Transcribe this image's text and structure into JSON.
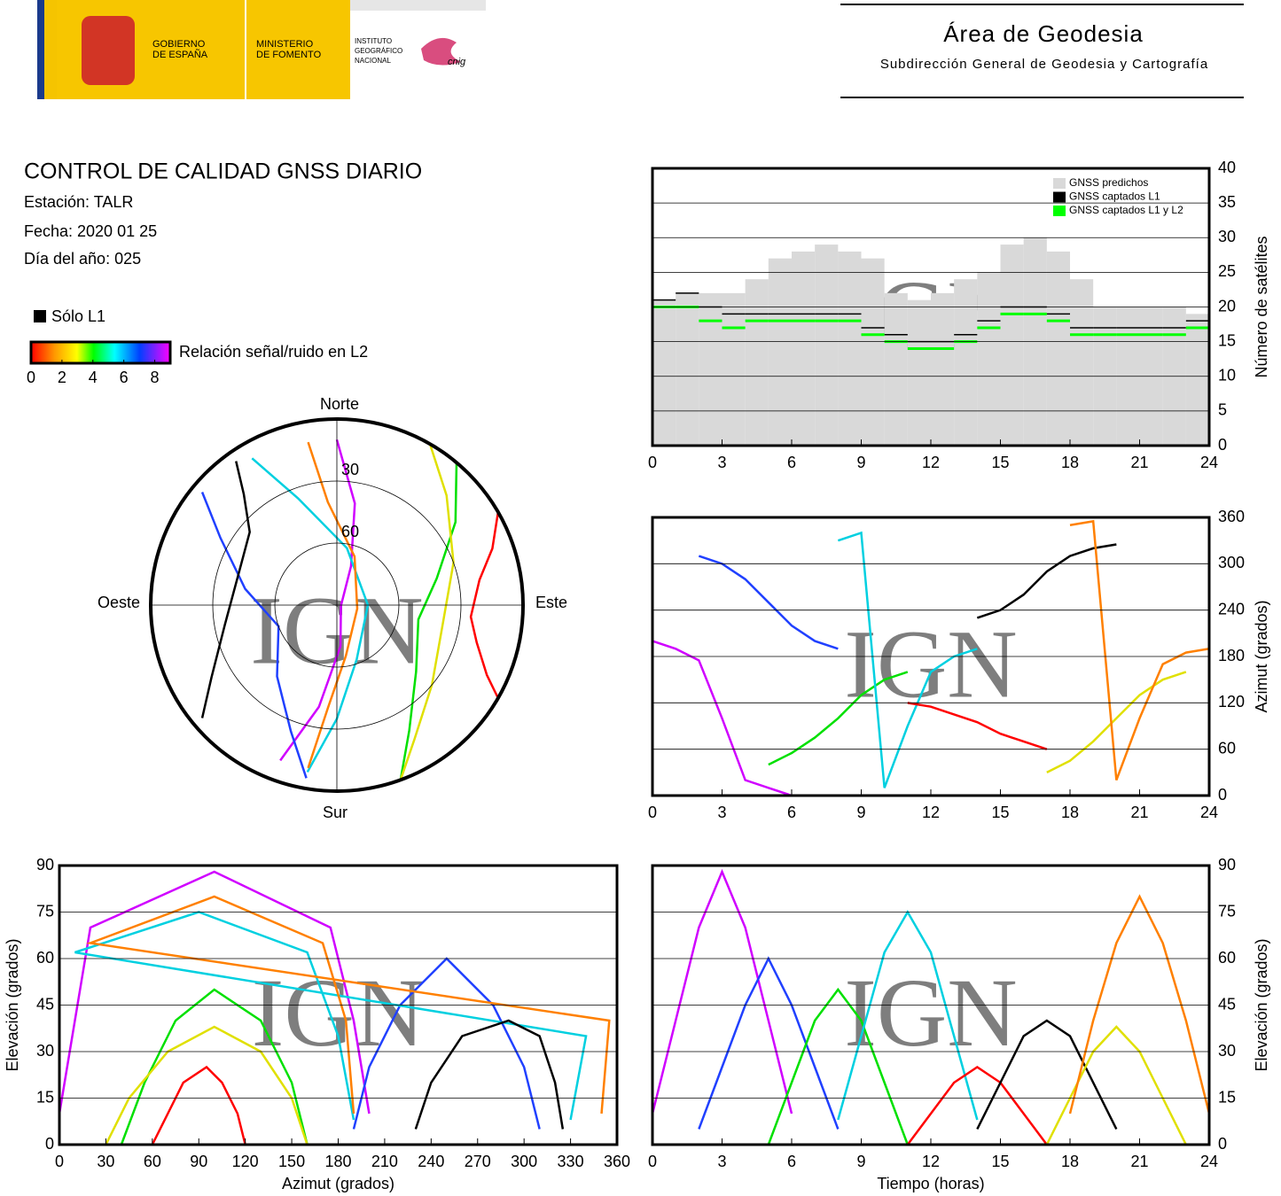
{
  "header": {
    "gobierno": [
      "GOBIERNO",
      "DE ESPAÑA"
    ],
    "ministerio": [
      "MINISTERIO",
      "DE FOMENTO"
    ],
    "instituto": [
      "INSTITUTO",
      "GEOGRÁFICO",
      "NACIONAL"
    ],
    "cnig": "cnig",
    "title": "Área de Geodesia",
    "subtitle": "Subdirección General de Geodesia y Cartografía"
  },
  "info": {
    "title": "CONTROL DE CALIDAD GNSS DIARIO",
    "lines": [
      "Estación: TALR",
      "Fecha: 2020 01 25",
      "Día del año: 025"
    ],
    "l1_only": "Sólo L1",
    "colorbar": {
      "label": "Relación señal/ruido en L2",
      "lim": [
        0,
        9
      ],
      "ticks": [
        0,
        2,
        4,
        6,
        8
      ]
    }
  },
  "watermark": "IGN",
  "tracks": [
    {
      "color": "#d000ff",
      "t": [
        0,
        1,
        2,
        3,
        4,
        5,
        6
      ],
      "elevation": [
        10,
        40,
        70,
        88,
        70,
        40,
        10
      ],
      "azimuth": [
        200,
        190,
        175,
        100,
        20,
        10,
        0
      ]
    },
    {
      "color": "#2040ff",
      "t": [
        2,
        3,
        4,
        5,
        6,
        7,
        8
      ],
      "elevation": [
        5,
        25,
        45,
        60,
        45,
        25,
        5
      ],
      "azimuth": [
        310,
        300,
        280,
        250,
        220,
        200,
        190
      ]
    },
    {
      "color": "#00e000",
      "t": [
        5,
        6,
        7,
        8,
        9,
        10,
        11
      ],
      "elevation": [
        0,
        20,
        40,
        50,
        40,
        20,
        0
      ],
      "azimuth": [
        40,
        55,
        75,
        100,
        130,
        150,
        160
      ]
    },
    {
      "color": "#00d0e0",
      "t": [
        8,
        9,
        10,
        11,
        12,
        13,
        14
      ],
      "elevation": [
        8,
        35,
        62,
        75,
        62,
        35,
        8
      ],
      "azimuth": [
        330,
        340,
        10,
        90,
        160,
        180,
        190
      ]
    },
    {
      "color": "#ff0000",
      "t": [
        11,
        12,
        13,
        14,
        15,
        16,
        17
      ],
      "elevation": [
        0,
        10,
        20,
        25,
        20,
        10,
        0
      ],
      "azimuth": [
        120,
        115,
        105,
        95,
        80,
        70,
        60
      ]
    },
    {
      "color": "#000000",
      "t": [
        14,
        15,
        16,
        17,
        18,
        19,
        20
      ],
      "elevation": [
        5,
        20,
        35,
        40,
        35,
        20,
        5
      ],
      "azimuth": [
        230,
        240,
        260,
        290,
        310,
        320,
        325
      ]
    },
    {
      "color": "#e0e000",
      "t": [
        17,
        18,
        19,
        20,
        21,
        22,
        23
      ],
      "elevation": [
        0,
        15,
        30,
        38,
        30,
        15,
        0
      ],
      "azimuth": [
        30,
        45,
        70,
        100,
        130,
        150,
        160
      ]
    },
    {
      "color": "#ff8000",
      "t": [
        18,
        19,
        20,
        21,
        22,
        23,
        24
      ],
      "elevation": [
        10,
        40,
        65,
        80,
        65,
        40,
        10
      ],
      "azimuth": [
        350,
        355,
        20,
        100,
        170,
        185,
        190
      ]
    }
  ],
  "chart_data": [
    {
      "type": "step",
      "ylabel": "Número de satélites",
      "xlim": [
        0,
        24
      ],
      "xticks": [
        0,
        3,
        6,
        9,
        12,
        15,
        18,
        21,
        24
      ],
      "ylim": [
        0,
        40
      ],
      "yticks": [
        0,
        5,
        10,
        15,
        20,
        25,
        30,
        35,
        40
      ],
      "grid": true,
      "yaxis_side": "right",
      "legend": "upper right",
      "x": [
        0,
        1,
        2,
        3,
        4,
        5,
        6,
        7,
        8,
        9,
        10,
        11,
        12,
        13,
        14,
        15,
        16,
        17,
        18,
        19,
        20,
        21,
        22,
        23
      ],
      "series": [
        {
          "name": "GNSS predichos",
          "color": "#d9d9d9",
          "values": [
            21,
            22,
            22,
            22,
            24,
            27,
            28,
            29,
            28,
            27,
            22,
            21,
            22,
            24,
            25,
            29,
            30,
            28,
            24,
            20,
            20,
            20,
            20,
            19
          ]
        },
        {
          "name": "GNSS captados L1",
          "color": "#000000",
          "values": [
            21,
            22,
            20,
            19,
            19,
            19,
            19,
            19,
            19,
            17,
            16,
            15,
            15,
            16,
            18,
            20,
            20,
            19,
            17,
            17,
            17,
            17,
            17,
            18
          ]
        },
        {
          "name": "GNSS captados L1 y L2",
          "color": "#00ff00",
          "values": [
            20,
            20,
            18,
            17,
            18,
            18,
            18,
            18,
            18,
            16,
            15,
            14,
            14,
            15,
            17,
            19,
            19,
            18,
            16,
            16,
            16,
            16,
            16,
            17
          ]
        }
      ]
    },
    {
      "type": "azimuth-time",
      "ylabel": "Azimut (grados)",
      "xlim": [
        0,
        24
      ],
      "xticks": [
        0,
        3,
        6,
        9,
        12,
        15,
        18,
        21,
        24
      ],
      "ylim": [
        0,
        360
      ],
      "yticks": [
        0,
        60,
        120,
        180,
        240,
        300,
        360
      ],
      "grid": true,
      "yaxis_side": "right"
    },
    {
      "type": "sky",
      "compass": {
        "north": "Norte",
        "south": "Sur",
        "west": "Oeste",
        "east": "Este"
      },
      "rings": [
        30,
        60
      ],
      "elevation_lim": [
        0,
        90
      ]
    },
    {
      "type": "elevation-azimuth",
      "xlabel": "Azimut (grados)",
      "ylabel": "Elevación (grados)",
      "xlim": [
        0,
        360
      ],
      "xticks": [
        0,
        30,
        60,
        90,
        120,
        150,
        180,
        210,
        240,
        270,
        300,
        330,
        360
      ],
      "ylim": [
        0,
        90
      ],
      "yticks": [
        0,
        15,
        30,
        45,
        60,
        75,
        90
      ],
      "grid": true,
      "yaxis_side": "left"
    },
    {
      "type": "elevation-time",
      "xlabel": "Tiempo (horas)",
      "ylabel": "Elevación (grados)",
      "xlim": [
        0,
        24
      ],
      "xticks": [
        0,
        3,
        6,
        9,
        12,
        15,
        18,
        21,
        24
      ],
      "ylim": [
        0,
        90
      ],
      "yticks": [
        0,
        15,
        30,
        45,
        60,
        75,
        90
      ],
      "grid": true,
      "yaxis_side": "right"
    }
  ]
}
